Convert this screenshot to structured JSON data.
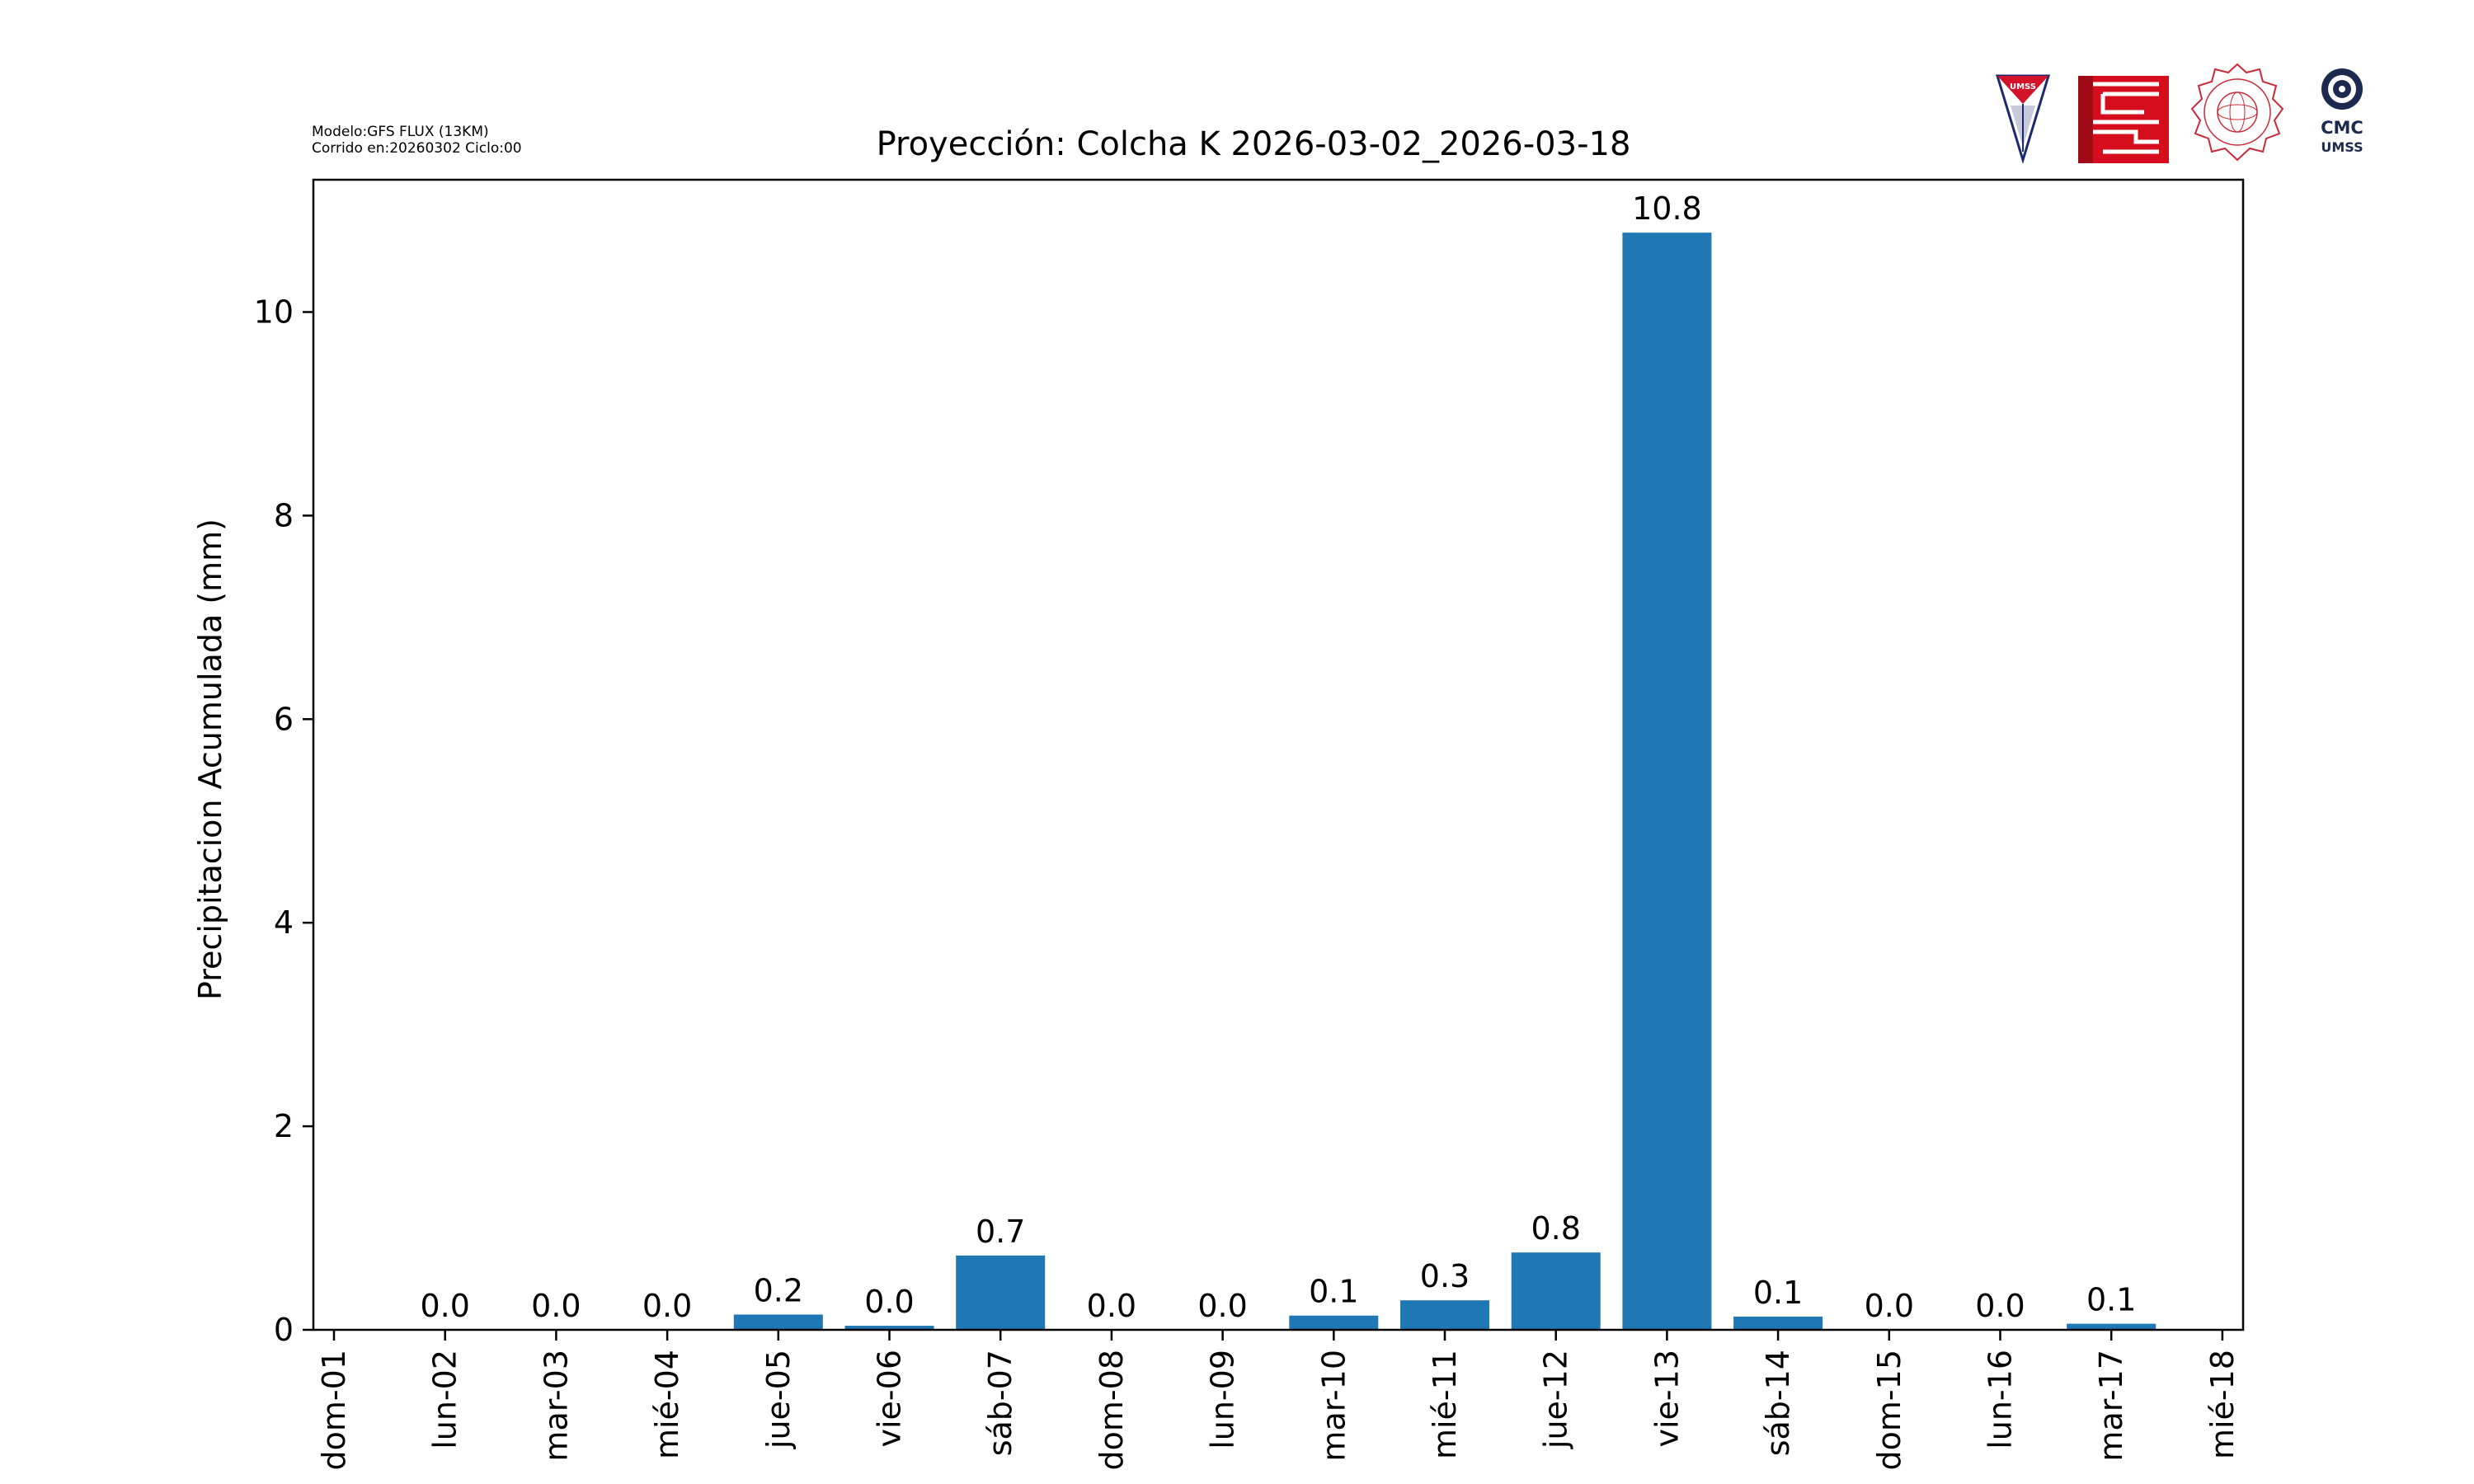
{
  "header": {
    "model_line": "Modelo:GFS FLUX (13KM)",
    "run_line": "Corrido en:20260302 Ciclo:00"
  },
  "logos": {
    "umss_text": "UMSS",
    "cmc_text": "CMC",
    "cmc_sub": "UMSS"
  },
  "colors": {
    "bar": "#1f77b4",
    "axis": "#000000",
    "umss_red": "#d3132a",
    "fcyt_red": "#d50d1d",
    "cmc_navy": "#1b2a4e"
  },
  "chart_data": {
    "type": "bar",
    "title": "Proyección: Colcha K  2026-03-02_2026-03-18",
    "xlabel": "",
    "ylabel": "Precipitacion Acumulada (mm)",
    "x_ticks": [
      "dom-01",
      "lun-02",
      "mar-03",
      "mié-04",
      "jue-05",
      "vie-06",
      "sáb-07",
      "dom-08",
      "lun-09",
      "mar-10",
      "mié-11",
      "jue-12",
      "vie-13",
      "sáb-14",
      "dom-15",
      "lun-16",
      "mar-17",
      "mié-18"
    ],
    "categories": [
      "lun-02",
      "mar-03",
      "mié-04",
      "jue-05",
      "vie-06",
      "sáb-07",
      "dom-08",
      "lun-09",
      "mar-10",
      "mié-11",
      "jue-12",
      "vie-13",
      "sáb-14",
      "dom-15",
      "lun-16",
      "mar-17"
    ],
    "values": [
      0.0,
      0.0,
      0.0,
      0.15,
      0.04,
      0.73,
      0.0,
      0.0,
      0.14,
      0.29,
      0.76,
      10.78,
      0.13,
      0.0,
      0.0,
      0.06
    ],
    "data_labels": [
      "0.0",
      "0.0",
      "0.0",
      "0.2",
      "0.0",
      "0.7",
      "0.0",
      "0.0",
      "0.1",
      "0.3",
      "0.8",
      "10.8",
      "0.1",
      "0.0",
      "0.0",
      "0.1"
    ],
    "y_ticks": [
      0,
      2,
      4,
      6,
      8,
      10
    ],
    "ylim": [
      0,
      11.3
    ],
    "grid": false,
    "legend": "none"
  }
}
